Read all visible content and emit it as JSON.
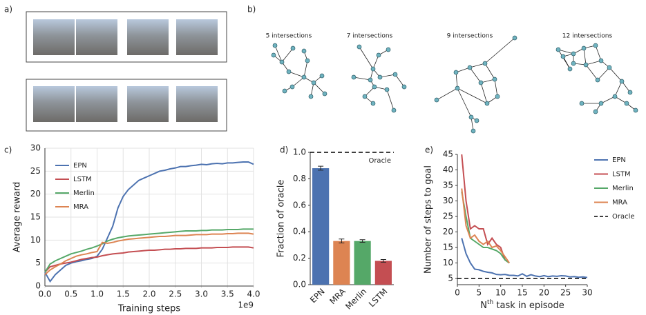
{
  "panel_labels": [
    "a)",
    "b)",
    "c)",
    "d)",
    "e)"
  ],
  "graph_titles": [
    "5 intersections",
    "7 intersections",
    "9 intersections",
    "12 intersections"
  ],
  "chart_data": [
    {
      "type": "line",
      "xlabel": "Training steps",
      "ylabel": "Average reward",
      "x_offset_label": "1e9",
      "x": [
        0,
        0.1,
        0.2,
        0.3,
        0.4,
        0.5,
        0.6,
        0.7,
        0.8,
        0.9,
        1.0,
        1.1,
        1.2,
        1.3,
        1.4,
        1.5,
        1.6,
        1.7,
        1.8,
        1.9,
        2.0,
        2.1,
        2.2,
        2.3,
        2.4,
        2.5,
        2.6,
        2.7,
        2.8,
        2.9,
        3.0,
        3.1,
        3.2,
        3.3,
        3.4,
        3.5,
        3.6,
        3.7,
        3.8,
        3.9,
        4.0
      ],
      "series": [
        {
          "name": "EPN",
          "color": "#4c72b0",
          "values": [
            3,
            1,
            2.5,
            3.5,
            4.5,
            5,
            5.3,
            5.5,
            5.8,
            6,
            6.5,
            8,
            10.5,
            13,
            17,
            19.5,
            21,
            22,
            23,
            23.5,
            24,
            24.5,
            25,
            25.2,
            25.5,
            25.7,
            26,
            26,
            26.2,
            26.3,
            26.5,
            26.4,
            26.6,
            26.7,
            26.6,
            26.8,
            26.8,
            26.9,
            27,
            27,
            26.5
          ]
        },
        {
          "name": "LSTM",
          "color": "#c44e52",
          "values": [
            3,
            4.2,
            4.5,
            4.8,
            5,
            5.2,
            5.5,
            5.8,
            6,
            6.2,
            6.3,
            6.6,
            6.8,
            7,
            7.1,
            7.2,
            7.4,
            7.5,
            7.6,
            7.7,
            7.8,
            7.8,
            7.9,
            8,
            8,
            8.1,
            8.1,
            8.2,
            8.2,
            8.2,
            8.3,
            8.3,
            8.3,
            8.4,
            8.4,
            8.4,
            8.5,
            8.5,
            8.5,
            8.5,
            8.3
          ]
        },
        {
          "name": "Merlin",
          "color": "#55a868",
          "values": [
            3,
            4.8,
            5.5,
            6,
            6.5,
            7,
            7.3,
            7.6,
            8,
            8.3,
            8.7,
            9.2,
            9.8,
            10.2,
            10.5,
            10.7,
            10.9,
            11,
            11.1,
            11.2,
            11.3,
            11.4,
            11.5,
            11.6,
            11.7,
            11.8,
            11.9,
            12,
            12,
            12,
            12.1,
            12.1,
            12.2,
            12.2,
            12.2,
            12.3,
            12.3,
            12.3,
            12.4,
            12.4,
            12.4
          ]
        },
        {
          "name": "MRA",
          "color": "#dd8452",
          "values": [
            2.5,
            3.5,
            4.2,
            4.8,
            5.5,
            6,
            6.5,
            6.8,
            7,
            7.3,
            7.5,
            9.5,
            9.3,
            9.5,
            9.8,
            10,
            10.2,
            10.3,
            10.4,
            10.5,
            10.6,
            10.7,
            10.8,
            10.8,
            10.9,
            11,
            11,
            11,
            11.1,
            11.2,
            11.2,
            11.2,
            11.3,
            11.3,
            11.3,
            11.4,
            11.4,
            11.5,
            11.5,
            11.5,
            11.3
          ]
        }
      ],
      "xlim": [
        0,
        4
      ],
      "xticks": [
        {
          "value": 0,
          "label": "0.0"
        },
        0.5,
        {
          "value": 1,
          "label": "1.0"
        },
        1.5,
        {
          "value": 2,
          "label": "2.0"
        },
        2.5,
        {
          "value": 3,
          "label": "3.0"
        },
        3.5,
        {
          "value": 4,
          "label": "4.0"
        }
      ],
      "ylim": [
        0,
        30
      ],
      "yticks": [
        0,
        5,
        10,
        15,
        20,
        25,
        30
      ],
      "grid": true
    },
    {
      "type": "bar",
      "ylabel": "Fraction of oracle",
      "categories": [
        "EPN",
        "MRA",
        "Merlin",
        "LSTM"
      ],
      "values": [
        0.88,
        0.33,
        0.33,
        0.18
      ],
      "errors": [
        0.015,
        0.015,
        0.01,
        0.01
      ],
      "colors": [
        "#4c72b0",
        "#dd8452",
        "#55a868",
        "#c44e52"
      ],
      "reference_line": {
        "value": 1,
        "label": "Oracle"
      },
      "ylim": [
        0,
        1
      ],
      "yticks": [
        {
          "value": 0,
          "label": "0.0"
        },
        0.2,
        0.4,
        0.6,
        0.8,
        {
          "value": 1,
          "label": "1.0"
        }
      ]
    },
    {
      "type": "line",
      "xlabel": [
        "N",
        "th",
        " task in episode"
      ],
      "ylabel": "Number of steps to goal",
      "series": [
        {
          "name": "EPN",
          "color": "#4c72b0",
          "x": [
            1,
            2,
            3,
            4,
            5,
            6,
            7,
            8,
            9,
            10,
            11,
            12,
            13,
            14,
            15,
            16,
            17,
            18,
            19,
            20,
            21,
            22,
            23,
            24,
            25,
            26,
            27,
            28,
            29,
            30
          ],
          "values": [
            18,
            13,
            10,
            8,
            7.8,
            7.3,
            7,
            6.8,
            6.3,
            6.2,
            6.3,
            6,
            6,
            5.8,
            6.5,
            5.7,
            6.2,
            5.8,
            5.6,
            5.9,
            5.6,
            5.8,
            5.7,
            5.9,
            5.8,
            5.5,
            5.6,
            5.4,
            5.5,
            5.3
          ]
        },
        {
          "name": "LSTM",
          "color": "#c44e52",
          "x": [
            1,
            2,
            3,
            4,
            5,
            6,
            7,
            8,
            9,
            10,
            11,
            12
          ],
          "values": [
            45,
            30,
            21,
            22,
            21,
            21,
            16,
            18,
            16,
            15,
            11,
            10
          ]
        },
        {
          "name": "Merlin",
          "color": "#55a868",
          "x": [
            1,
            2,
            3,
            4,
            5,
            6,
            7,
            8,
            9,
            10,
            11,
            12
          ],
          "values": [
            33,
            25,
            18,
            17,
            16,
            15,
            15,
            14.5,
            14,
            13,
            11,
            10
          ]
        },
        {
          "name": "MRA",
          "color": "#dd8452",
          "x": [
            1,
            2,
            3,
            4,
            5,
            6,
            7,
            8,
            9,
            10,
            11,
            12
          ],
          "values": [
            34,
            22,
            18,
            19,
            17,
            16,
            17,
            15,
            15.5,
            14,
            12,
            10
          ]
        }
      ],
      "reference_line": {
        "value": 5,
        "label": "Oracle"
      },
      "xlim": [
        0,
        30
      ],
      "xticks": [
        0,
        5,
        10,
        15,
        20,
        25,
        30
      ],
      "ylim": [
        3,
        45
      ],
      "yticks": [
        5,
        10,
        15,
        20,
        25,
        30,
        35,
        40,
        45
      ]
    }
  ]
}
